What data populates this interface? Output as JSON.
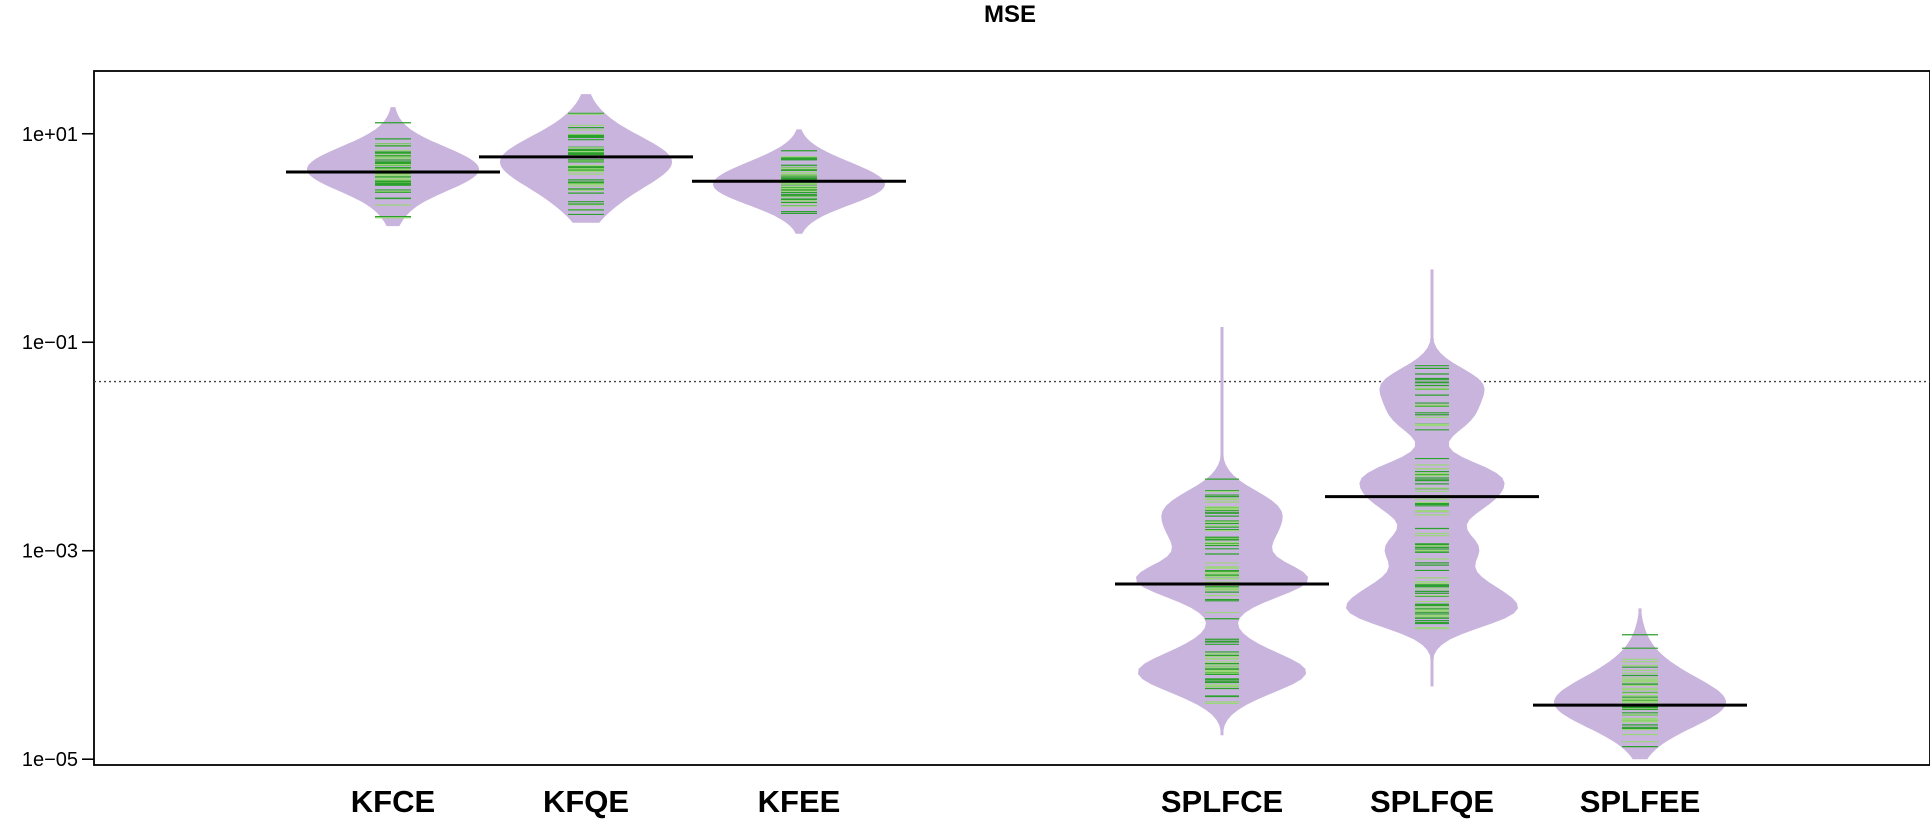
{
  "chart_data": {
    "type": "beanplot",
    "title": "MSE",
    "xlabel": "",
    "ylabel": "",
    "y_scale": "log10",
    "ylim": [
      8.8e-06,
      40
    ],
    "y_ticks": [
      {
        "value": 1e-05,
        "label": "1e−05"
      },
      {
        "value": 0.001,
        "label": "1e−03"
      },
      {
        "value": 0.1,
        "label": "1e−01"
      },
      {
        "value": 10,
        "label": "1e+01"
      }
    ],
    "overall_mean_line": 0.042,
    "colors": {
      "bean_fill": "#c8b4dc",
      "bean_lines": "#2ca02c",
      "bean_lines_light": "#9bd67a",
      "mean_line": "#000000",
      "reference_line": "#444444"
    },
    "series": [
      {
        "name": "KFCE",
        "group_position": 1,
        "mean": 4.3,
        "min": 1.3,
        "max": 18,
        "mode_low": 2.5,
        "mode_high": 8.5
      },
      {
        "name": "KFQE",
        "group_position": 2,
        "mean": 6.0,
        "min": 1.4,
        "max": 24,
        "mode_low": 2.6,
        "mode_high": 11
      },
      {
        "name": "KFEE",
        "group_position": 3,
        "mean": 3.5,
        "min": 1.1,
        "max": 11,
        "mode_low": 2.0,
        "mode_high": 6.0
      },
      {
        "name": "SPLFCE",
        "group_position": 5,
        "mean": 0.00048,
        "min": 1.7e-05,
        "max": 0.14,
        "modes": [
          7e-05,
          0.0006,
          0.002
        ]
      },
      {
        "name": "SPLFQE",
        "group_position": 6,
        "mean": 0.0033,
        "min": 5e-05,
        "max": 0.5,
        "modes": [
          0.0003,
          0.001,
          0.004,
          0.025
        ]
      },
      {
        "name": "SPLFEE",
        "group_position": 7,
        "mean": 3.3e-05,
        "min": 1e-05,
        "max": 0.00028,
        "mode_low": 1.8e-05,
        "mode_high": 7e-05
      }
    ]
  }
}
